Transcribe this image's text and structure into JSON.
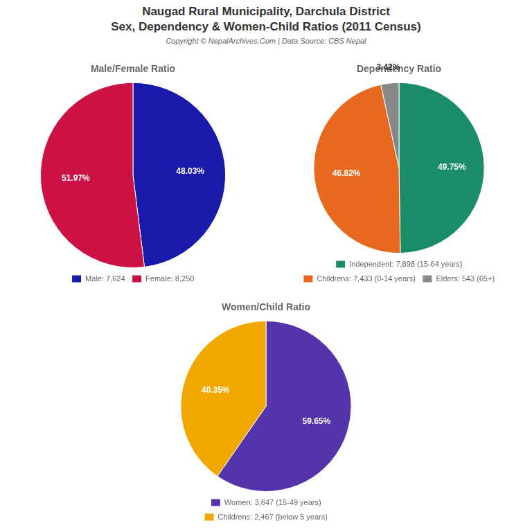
{
  "title": "Naugad Rural Municipality, Darchula District",
  "subtitle": "Sex, Dependency & Women-Child Ratios (2011 Census)",
  "annotations": [
    "Copyright © NepalArchives.Com | Data Source: CBS Nepal"
  ],
  "chart_data": [
    {
      "type": "pie",
      "title": "Male/Female Ratio",
      "categories": [
        "Male: 7,624",
        "Female: 8,250"
      ],
      "values": [
        48.03,
        51.97
      ],
      "value_labels": [
        "48.03%",
        "51.97%"
      ],
      "colors": [
        "#1a1aaa",
        "#cc1144"
      ],
      "data_labels": true,
      "legend": "bottom"
    },
    {
      "type": "pie",
      "title": "Dependency Ratio",
      "categories": [
        "Independent: 7,898 (15-64 years)",
        "Childrens: 7,433 (0-14 years)",
        "Elders: 543 (65+)"
      ],
      "values": [
        49.75,
        46.82,
        3.42
      ],
      "value_labels": [
        "49.75%",
        "46.82%",
        "3.42%"
      ],
      "colors": [
        "#1a8c6a",
        "#e86820",
        "#888888"
      ],
      "data_labels": true,
      "legend": "bottom"
    },
    {
      "type": "pie",
      "title": "Women/Child Ratio",
      "categories": [
        "Women: 3,647 (15-49 years)",
        "Childrens: 2,467 (below 5 years)"
      ],
      "values": [
        59.65,
        40.35
      ],
      "value_labels": [
        "59.65%",
        "40.35%"
      ],
      "colors": [
        "#5533aa",
        "#f0a800"
      ],
      "data_labels": true,
      "legend": "bottom"
    }
  ]
}
